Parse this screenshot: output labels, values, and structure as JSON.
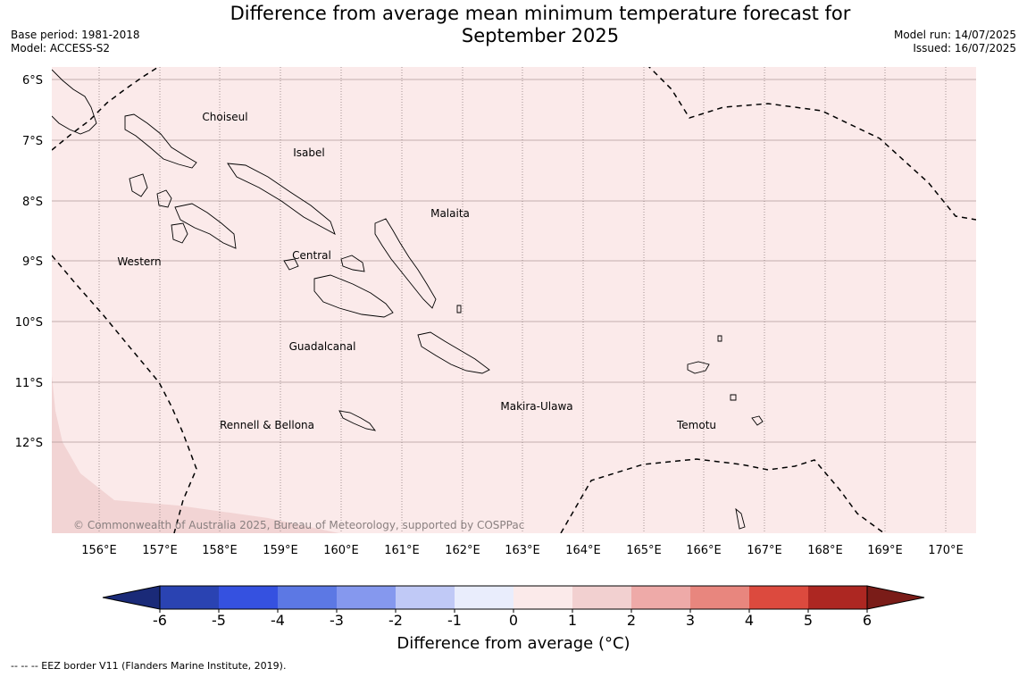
{
  "title_line1": "Difference from average mean minimum temperature forecast for",
  "title_line2": "September 2025",
  "meta_left": [
    "Base period: 1981-2018",
    "Model: ACCESS-S2"
  ],
  "meta_right": [
    "Model run: 14/07/2025",
    "Issued: 16/07/2025"
  ],
  "lat_labels": [
    "6°S",
    "7°S",
    "8°S",
    "9°S",
    "10°S",
    "11°S",
    "12°S"
  ],
  "lon_labels": [
    "156°E",
    "157°E",
    "158°E",
    "159°E",
    "160°E",
    "161°E",
    "162°E",
    "163°E",
    "164°E",
    "165°E",
    "166°E",
    "167°E",
    "168°E",
    "169°E",
    "170°E"
  ],
  "provinces": [
    "Choiseul",
    "Isabel",
    "Malaita",
    "Western",
    "Central",
    "Guadalcanal",
    "Makira-Ulawa",
    "Temotu",
    "Rennell & Bellona"
  ],
  "copyright": "© Commonwealth of Australia 2025, Bureau of Meteorology, supported by COSPPac",
  "colorbar": {
    "ticks": [
      "-6",
      "-5",
      "-4",
      "-3",
      "-2",
      "-1",
      "0",
      "1",
      "2",
      "3",
      "4",
      "5",
      "6"
    ],
    "colors": [
      "#1a2a78",
      "#2a43b2",
      "#3551e0",
      "#5c78e4",
      "#8598ee",
      "#c0c9f6",
      "#e9edfc",
      "#fbeaea",
      "#f2d0d0",
      "#eeaaa8",
      "#e8867e",
      "#dc4a3e",
      "#ad2722",
      "#7a1c18"
    ],
    "label": "Difference from average (°C)"
  },
  "map_colors": {
    "background": "#fbeaea",
    "southwest": "#f2d4d4"
  },
  "footnote": "--  --  -- EEZ border V11 (Flanders Marine Institute, 2019)."
}
